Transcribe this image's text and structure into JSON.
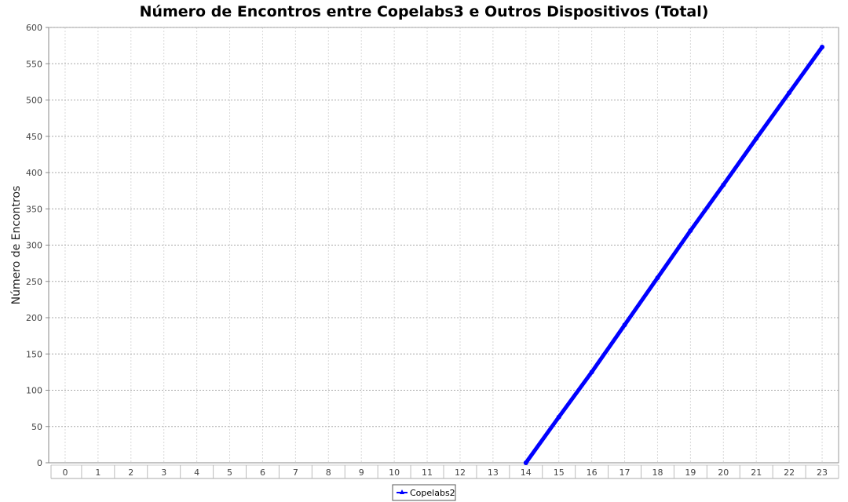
{
  "chart_data": {
    "type": "line",
    "title": "Número de Encontros entre Copelabs3 e Outros Dispositivos (Total)",
    "xlabel": "",
    "ylabel": "Número de Encontros",
    "categories": [
      "0",
      "1",
      "2",
      "3",
      "4",
      "5",
      "6",
      "7",
      "8",
      "9",
      "10",
      "11",
      "12",
      "13",
      "14",
      "15",
      "16",
      "17",
      "18",
      "19",
      "20",
      "21",
      "22",
      "23"
    ],
    "ylim": [
      0,
      600
    ],
    "yticks": [
      0,
      50,
      100,
      150,
      200,
      250,
      300,
      350,
      400,
      450,
      500,
      550,
      600
    ],
    "grid": true,
    "legend_position": "bottom-center",
    "series": [
      {
        "name": "Copelabs2",
        "color": "#0000ff",
        "values": [
          null,
          null,
          null,
          null,
          null,
          null,
          null,
          null,
          null,
          null,
          null,
          null,
          null,
          null,
          0,
          63,
          125,
          190,
          255,
          320,
          383,
          447,
          510,
          573
        ]
      }
    ]
  }
}
